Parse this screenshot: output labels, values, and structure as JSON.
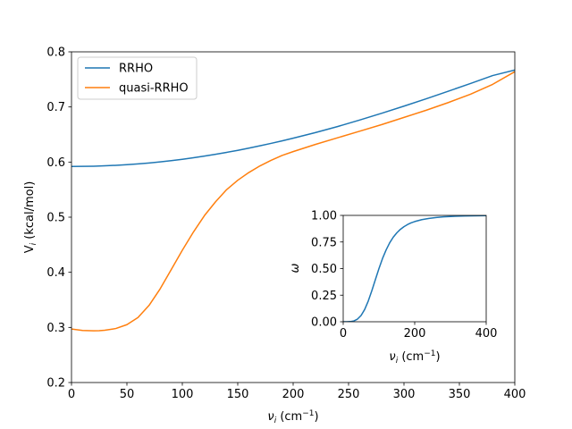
{
  "chart_data": [
    {
      "type": "line",
      "title": "",
      "xlabel": "ν_i (cm⁻¹)",
      "ylabel": "V_i (kcal/mol)",
      "xlim": [
        0,
        400
      ],
      "ylim": [
        0.2,
        0.8
      ],
      "xticks": [
        "0",
        "50",
        "100",
        "150",
        "200",
        "250",
        "300",
        "350",
        "400"
      ],
      "yticks": [
        "0.2",
        "0.3",
        "0.4",
        "0.5",
        "0.6",
        "0.7",
        "0.8"
      ],
      "grid": false,
      "legend": "upper-left",
      "x": [
        0,
        10,
        20,
        25,
        30,
        40,
        50,
        60,
        70,
        80,
        90,
        100,
        110,
        120,
        130,
        140,
        150,
        160,
        170,
        180,
        190,
        200,
        220,
        240,
        260,
        280,
        300,
        320,
        340,
        360,
        380,
        400
      ],
      "series": [
        {
          "name": "RRHO",
          "color": "#1f77b4",
          "values": [
            0.592,
            0.5922,
            0.5925,
            0.5928,
            0.5932,
            0.5941,
            0.5953,
            0.5967,
            0.5984,
            0.6003,
            0.6025,
            0.605,
            0.6078,
            0.6108,
            0.6141,
            0.6176,
            0.6213,
            0.6253,
            0.6295,
            0.6339,
            0.6385,
            0.6433,
            0.6535,
            0.6644,
            0.6762,
            0.6886,
            0.7015,
            0.7148,
            0.7285,
            0.7426,
            0.7569,
            0.767
          ]
        },
        {
          "name": "quasi-RRHO",
          "color": "#ff7f0e",
          "values": [
            0.297,
            0.2945,
            0.2938,
            0.294,
            0.2948,
            0.298,
            0.305,
            0.318,
            0.34,
            0.37,
            0.405,
            0.44,
            0.473,
            0.503,
            0.528,
            0.55,
            0.567,
            0.581,
            0.593,
            0.603,
            0.612,
            0.619,
            0.632,
            0.644,
            0.656,
            0.668,
            0.681,
            0.694,
            0.708,
            0.723,
            0.741,
            0.764
          ]
        }
      ]
    },
    {
      "type": "line",
      "title": "",
      "xlabel": "ν_i (cm⁻¹)",
      "ylabel": "ω",
      "xlim": [
        0,
        400
      ],
      "ylim": [
        0,
        1
      ],
      "xticks": [
        "0",
        "200",
        "400"
      ],
      "yticks": [
        "0.00",
        "0.25",
        "0.50",
        "0.75",
        "1.00"
      ],
      "grid": false,
      "x": [
        0,
        10,
        20,
        30,
        40,
        50,
        60,
        70,
        80,
        90,
        100,
        110,
        120,
        130,
        140,
        150,
        160,
        170,
        180,
        190,
        200,
        220,
        240,
        260,
        280,
        300,
        320,
        340,
        360,
        380,
        400
      ],
      "series": [
        {
          "color": "#1f77b4",
          "values": [
            0,
            0.0001,
            0.0016,
            0.008,
            0.025,
            0.059,
            0.115,
            0.194,
            0.291,
            0.396,
            0.5,
            0.595,
            0.675,
            0.742,
            0.795,
            0.836,
            0.869,
            0.894,
            0.914,
            0.93,
            0.942,
            0.96,
            0.972,
            0.98,
            0.986,
            0.99,
            0.993,
            0.995,
            0.996,
            0.997,
            0.998
          ]
        }
      ]
    }
  ]
}
